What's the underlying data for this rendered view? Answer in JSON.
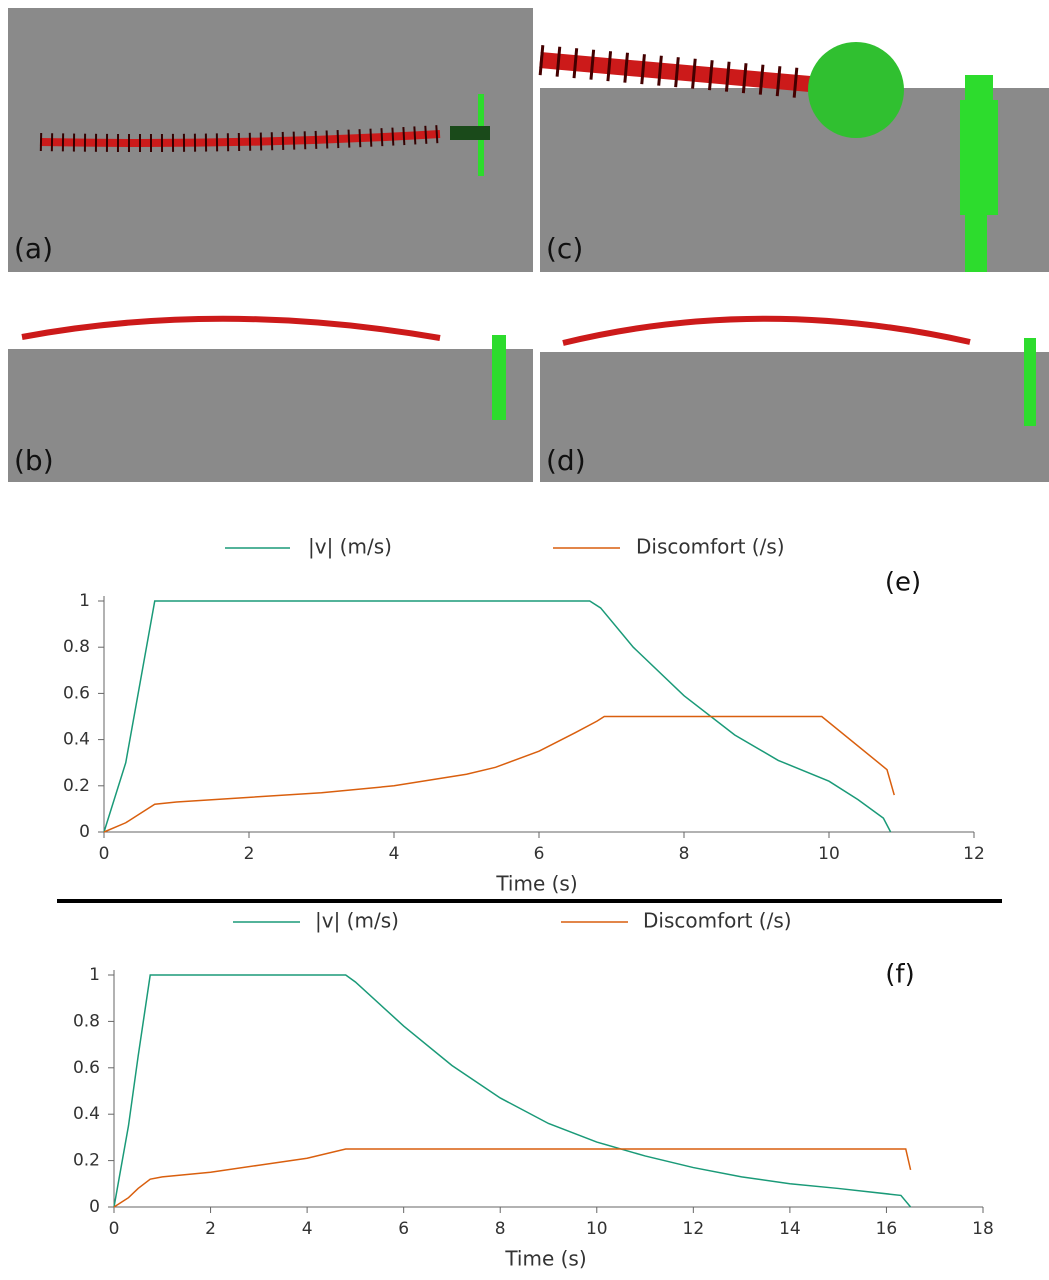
{
  "panels": [
    {
      "label": "(a)"
    },
    {
      "label": "(b)"
    },
    {
      "label": "(c)"
    },
    {
      "label": "(d)"
    }
  ],
  "chart_data": [
    {
      "type": "line",
      "annotation": "(e)",
      "x_label": "Time (s)",
      "xlim": [
        0,
        12
      ],
      "xticks": [
        0,
        2,
        4,
        6,
        8,
        10,
        12
      ],
      "ylim": [
        0,
        1
      ],
      "yticks": [
        0,
        0.2,
        0.4,
        0.6,
        0.8,
        1
      ],
      "legend": "top",
      "series": [
        {
          "name": "|v| (m/s)",
          "color": "#1a9a78",
          "x": [
            0,
            0.3,
            0.5,
            0.7,
            6.7,
            6.85,
            7.3,
            8,
            8.7,
            9.3,
            10,
            10.4,
            10.75,
            10.85
          ],
          "values": [
            0,
            0.3,
            0.65,
            1,
            1,
            0.97,
            0.8,
            0.59,
            0.42,
            0.31,
            0.22,
            0.14,
            0.06,
            0
          ]
        },
        {
          "name": "Discomfort (/s)",
          "color": "#d95f0e",
          "x": [
            0,
            0.3,
            0.5,
            0.7,
            1,
            2,
            3,
            4,
            5,
            5.4,
            6,
            6.5,
            6.8,
            6.9,
            9.9,
            10.8,
            10.9
          ],
          "values": [
            0,
            0.04,
            0.08,
            0.12,
            0.13,
            0.15,
            0.17,
            0.2,
            0.25,
            0.28,
            0.35,
            0.43,
            0.48,
            0.5,
            0.5,
            0.27,
            0.16
          ]
        }
      ]
    },
    {
      "type": "line",
      "annotation": "(f)",
      "x_label": "Time (s)",
      "xlim": [
        0,
        18
      ],
      "xticks": [
        0,
        2,
        4,
        6,
        8,
        10,
        12,
        14,
        16,
        18
      ],
      "ylim": [
        0,
        1
      ],
      "yticks": [
        0,
        0.2,
        0.4,
        0.6,
        0.8,
        1
      ],
      "legend": "top",
      "series": [
        {
          "name": "|v| (m/s)",
          "color": "#1a9a78",
          "x": [
            0,
            0.3,
            0.5,
            0.75,
            4.8,
            5,
            6,
            7,
            8,
            9,
            10,
            11,
            12,
            13,
            14,
            15,
            16.3,
            16.5
          ],
          "values": [
            0,
            0.35,
            0.65,
            1,
            1,
            0.97,
            0.78,
            0.61,
            0.47,
            0.36,
            0.28,
            0.22,
            0.17,
            0.13,
            0.1,
            0.08,
            0.05,
            0
          ]
        },
        {
          "name": "Discomfort (/s)",
          "color": "#d95f0e",
          "x": [
            0,
            0.3,
            0.5,
            0.75,
            1,
            2,
            3,
            4,
            4.8,
            16.4,
            16.5
          ],
          "values": [
            0,
            0.04,
            0.08,
            0.12,
            0.13,
            0.15,
            0.18,
            0.21,
            0.25,
            0.25,
            0.16
          ]
        }
      ]
    }
  ]
}
